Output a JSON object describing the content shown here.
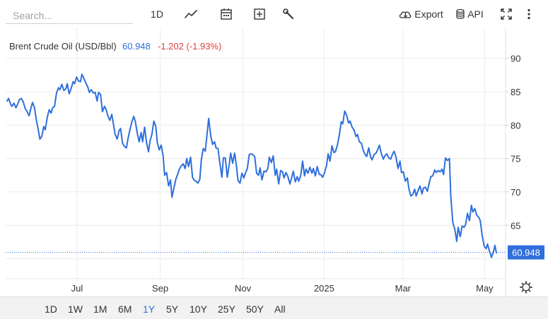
{
  "toolbar": {
    "search_placeholder": "Search...",
    "interval_label": "1D",
    "export_label": "Export",
    "api_label": "API"
  },
  "legend": {
    "name": "Brent Crude Oil (USD/Bbl)",
    "last": "60.948",
    "change": "-1.202 (-1.93%)",
    "name_color": "#333333",
    "last_color": "#2f6fdc",
    "change_color": "#e0403a"
  },
  "price_badge": "60.948",
  "ranges": [
    {
      "label": "1D",
      "active": false
    },
    {
      "label": "1W",
      "active": false
    },
    {
      "label": "1M",
      "active": false
    },
    {
      "label": "6M",
      "active": false
    },
    {
      "label": "1Y",
      "active": true
    },
    {
      "label": "5Y",
      "active": false
    },
    {
      "label": "10Y",
      "active": false
    },
    {
      "label": "25Y",
      "active": false
    },
    {
      "label": "50Y",
      "active": false
    },
    {
      "label": "All",
      "active": false
    }
  ],
  "chart_data": {
    "type": "line",
    "title": "",
    "xlabel": "",
    "ylabel": "",
    "ylim": [
      57,
      94.5
    ],
    "xlim": [
      0,
      100
    ],
    "y_ticks": [
      90,
      85,
      80,
      75,
      70,
      65
    ],
    "x_ticks": [
      {
        "label": "Jul",
        "x": 14.3
      },
      {
        "label": "Sep",
        "x": 31.3
      },
      {
        "label": "Nov",
        "x": 48.2
      },
      {
        "label": "2025",
        "x": 64.8
      },
      {
        "label": "Mar",
        "x": 80.9
      },
      {
        "label": "May",
        "x": 97.6
      }
    ],
    "line_color": "#2f6fdc",
    "last_value": 60.948,
    "grid": true,
    "series": [
      {
        "values": [
          [
            0.0,
            83.6
          ],
          [
            0.3,
            84.0
          ],
          [
            0.7,
            83.2
          ],
          [
            1.0,
            82.8
          ],
          [
            1.4,
            83.3
          ],
          [
            1.8,
            82.6
          ],
          [
            2.2,
            83.2
          ],
          [
            2.5,
            83.8
          ],
          [
            2.9,
            84.0
          ],
          [
            3.3,
            83.5
          ],
          [
            3.7,
            82.5
          ],
          [
            4.1,
            82.0
          ],
          [
            4.5,
            81.4
          ],
          [
            4.8,
            82.3
          ],
          [
            5.2,
            83.4
          ],
          [
            5.6,
            82.6
          ],
          [
            6.0,
            80.7
          ],
          [
            6.3,
            79.6
          ],
          [
            6.7,
            77.9
          ],
          [
            7.1,
            78.3
          ],
          [
            7.5,
            79.8
          ],
          [
            7.8,
            79.3
          ],
          [
            8.2,
            81.1
          ],
          [
            8.6,
            82.3
          ],
          [
            9.0,
            81.8
          ],
          [
            9.3,
            82.6
          ],
          [
            9.7,
            82.8
          ],
          [
            10.1,
            84.8
          ],
          [
            10.5,
            85.6
          ],
          [
            10.8,
            85.3
          ],
          [
            11.2,
            86.1
          ],
          [
            11.6,
            85.2
          ],
          [
            12.0,
            85.4
          ],
          [
            12.3,
            86.2
          ],
          [
            12.7,
            84.7
          ],
          [
            13.1,
            85.5
          ],
          [
            13.5,
            86.5
          ],
          [
            13.8,
            86.2
          ],
          [
            14.2,
            87.2
          ],
          [
            14.6,
            86.6
          ],
          [
            15.0,
            86.5
          ],
          [
            15.3,
            87.6
          ],
          [
            15.7,
            87.0
          ],
          [
            16.1,
            86.3
          ],
          [
            16.5,
            85.7
          ],
          [
            16.8,
            84.9
          ],
          [
            17.2,
            85.3
          ],
          [
            17.6,
            84.8
          ],
          [
            18.0,
            84.9
          ],
          [
            18.4,
            83.6
          ],
          [
            18.7,
            84.9
          ],
          [
            19.1,
            84.6
          ],
          [
            19.5,
            82.0
          ],
          [
            19.9,
            82.8
          ],
          [
            20.2,
            82.4
          ],
          [
            20.6,
            81.4
          ],
          [
            21.0,
            80.7
          ],
          [
            21.4,
            81.6
          ],
          [
            21.7,
            80.3
          ],
          [
            22.1,
            78.6
          ],
          [
            22.5,
            77.9
          ],
          [
            22.9,
            79.2
          ],
          [
            23.2,
            79.5
          ],
          [
            23.6,
            77.3
          ],
          [
            24.0,
            76.8
          ],
          [
            24.4,
            76.6
          ],
          [
            24.7,
            77.9
          ],
          [
            25.1,
            79.3
          ],
          [
            25.5,
            80.5
          ],
          [
            25.9,
            81.3
          ],
          [
            26.2,
            80.6
          ],
          [
            26.6,
            78.8
          ],
          [
            27.0,
            77.5
          ],
          [
            27.4,
            78.9
          ],
          [
            27.7,
            77.5
          ],
          [
            28.1,
            79.7
          ],
          [
            28.5,
            77.4
          ],
          [
            28.9,
            76.0
          ],
          [
            29.2,
            77.6
          ],
          [
            29.6,
            78.6
          ],
          [
            30.0,
            80.6
          ],
          [
            30.4,
            79.8
          ],
          [
            30.7,
            77.4
          ],
          [
            31.1,
            76.3
          ],
          [
            31.5,
            77.0
          ],
          [
            31.9,
            75.4
          ],
          [
            32.2,
            72.5
          ],
          [
            32.6,
            72.9
          ],
          [
            33.0,
            70.9
          ],
          [
            33.4,
            71.8
          ],
          [
            33.7,
            69.2
          ],
          [
            34.1,
            70.6
          ],
          [
            34.5,
            71.9
          ],
          [
            34.9,
            72.7
          ],
          [
            35.2,
            73.4
          ],
          [
            35.6,
            73.9
          ],
          [
            36.0,
            74.2
          ],
          [
            36.4,
            73.5
          ],
          [
            36.7,
            75.0
          ],
          [
            37.1,
            73.8
          ],
          [
            37.5,
            75.2
          ],
          [
            37.9,
            72.2
          ],
          [
            38.2,
            71.8
          ],
          [
            38.6,
            71.6
          ],
          [
            39.0,
            71.3
          ],
          [
            39.4,
            71.9
          ],
          [
            39.7,
            74.8
          ],
          [
            40.1,
            76.5
          ],
          [
            40.5,
            76.1
          ],
          [
            40.9,
            78.8
          ],
          [
            41.2,
            81.0
          ],
          [
            41.6,
            78.5
          ],
          [
            42.0,
            77.1
          ],
          [
            42.4,
            77.5
          ],
          [
            42.7,
            76.6
          ],
          [
            43.1,
            76.5
          ],
          [
            43.5,
            74.3
          ],
          [
            43.9,
            72.2
          ],
          [
            44.2,
            75.1
          ],
          [
            44.6,
            75.1
          ],
          [
            45.0,
            72.2
          ],
          [
            45.4,
            74.1
          ],
          [
            45.7,
            75.8
          ],
          [
            46.1,
            74.3
          ],
          [
            46.5,
            75.8
          ],
          [
            46.9,
            73.8
          ],
          [
            47.2,
            71.7
          ],
          [
            47.6,
            71.3
          ],
          [
            48.0,
            72.8
          ],
          [
            48.4,
            72.1
          ],
          [
            48.7,
            72.8
          ],
          [
            49.1,
            73.5
          ],
          [
            49.5,
            75.6
          ],
          [
            49.9,
            75.7
          ],
          [
            50.2,
            75.6
          ],
          [
            50.6,
            75.3
          ],
          [
            51.0,
            72.8
          ],
          [
            51.4,
            72.5
          ],
          [
            51.7,
            73.6
          ],
          [
            52.1,
            71.8
          ],
          [
            52.5,
            73.1
          ],
          [
            52.9,
            73.0
          ],
          [
            53.3,
            73.5
          ],
          [
            53.6,
            75.2
          ],
          [
            54.0,
            74.4
          ],
          [
            54.4,
            75.4
          ],
          [
            54.8,
            72.5
          ],
          [
            55.1,
            73.4
          ],
          [
            55.5,
            71.2
          ],
          [
            55.9,
            73.2
          ],
          [
            56.3,
            73.0
          ],
          [
            56.6,
            72.1
          ],
          [
            57.0,
            72.9
          ],
          [
            57.4,
            72.3
          ],
          [
            57.8,
            71.2
          ],
          [
            58.1,
            72.0
          ],
          [
            58.5,
            73.1
          ],
          [
            58.9,
            71.5
          ],
          [
            59.3,
            72.3
          ],
          [
            59.6,
            71.6
          ],
          [
            60.0,
            72.4
          ],
          [
            60.4,
            74.6
          ],
          [
            60.8,
            72.4
          ],
          [
            61.1,
            73.4
          ],
          [
            61.5,
            72.8
          ],
          [
            61.9,
            73.7
          ],
          [
            62.3,
            72.8
          ],
          [
            62.6,
            73.5
          ],
          [
            63.0,
            72.4
          ],
          [
            63.4,
            73.8
          ],
          [
            63.8,
            72.6
          ],
          [
            64.1,
            72.6
          ],
          [
            64.5,
            72.2
          ],
          [
            64.9,
            72.9
          ],
          [
            65.3,
            74.0
          ],
          [
            65.6,
            75.7
          ],
          [
            66.0,
            74.6
          ],
          [
            66.4,
            76.9
          ],
          [
            66.8,
            75.9
          ],
          [
            67.1,
            76.0
          ],
          [
            67.5,
            77.0
          ],
          [
            67.9,
            78.5
          ],
          [
            68.3,
            80.5
          ],
          [
            68.6,
            80.2
          ],
          [
            69.0,
            82.1
          ],
          [
            69.4,
            81.5
          ],
          [
            69.8,
            80.3
          ],
          [
            70.1,
            80.6
          ],
          [
            70.5,
            79.7
          ],
          [
            70.9,
            79.3
          ],
          [
            71.3,
            78.3
          ],
          [
            71.6,
            78.6
          ],
          [
            72.0,
            77.5
          ],
          [
            72.4,
            77.3
          ],
          [
            72.8,
            76.2
          ],
          [
            73.1,
            75.7
          ],
          [
            73.5,
            75.3
          ],
          [
            73.9,
            76.6
          ],
          [
            74.3,
            75.2
          ],
          [
            74.6,
            74.8
          ],
          [
            75.0,
            75.6
          ],
          [
            75.4,
            75.8
          ],
          [
            75.8,
            76.4
          ],
          [
            76.1,
            77.0
          ],
          [
            76.5,
            75.7
          ],
          [
            76.9,
            74.9
          ],
          [
            77.3,
            75.5
          ],
          [
            77.6,
            75.7
          ],
          [
            78.0,
            75.1
          ],
          [
            78.4,
            74.9
          ],
          [
            78.8,
            75.7
          ],
          [
            79.1,
            76.1
          ],
          [
            79.5,
            75.2
          ],
          [
            79.9,
            73.5
          ],
          [
            80.3,
            74.6
          ],
          [
            80.6,
            72.9
          ],
          [
            81.0,
            73.0
          ],
          [
            81.4,
            71.6
          ],
          [
            81.8,
            72.1
          ],
          [
            82.1,
            70.6
          ],
          [
            82.5,
            69.4
          ],
          [
            82.9,
            69.6
          ],
          [
            83.3,
            70.4
          ],
          [
            83.6,
            69.4
          ],
          [
            84.0,
            70.2
          ],
          [
            84.4,
            70.9
          ],
          [
            84.8,
            69.7
          ],
          [
            85.1,
            70.6
          ],
          [
            85.5,
            70.7
          ],
          [
            85.9,
            70.1
          ],
          [
            86.2,
            71.1
          ],
          [
            86.6,
            72.3
          ],
          [
            87.0,
            72.4
          ],
          [
            87.4,
            73.3
          ],
          [
            87.7,
            72.9
          ],
          [
            88.1,
            73.2
          ],
          [
            88.5,
            73.0
          ],
          [
            88.9,
            73.4
          ],
          [
            89.2,
            72.6
          ],
          [
            89.6,
            75.1
          ],
          [
            90.0,
            74.7
          ],
          [
            90.4,
            75.0
          ],
          [
            90.7,
            69.2
          ],
          [
            91.1,
            65.4
          ],
          [
            91.5,
            64.4
          ],
          [
            91.9,
            62.6
          ],
          [
            92.2,
            64.7
          ],
          [
            92.6,
            63.3
          ],
          [
            93.0,
            64.9
          ],
          [
            93.4,
            64.7
          ],
          [
            93.7,
            65.1
          ],
          [
            94.1,
            66.8
          ],
          [
            94.5,
            65.7
          ],
          [
            94.9,
            68.0
          ],
          [
            95.2,
            67.0
          ],
          [
            95.6,
            67.5
          ],
          [
            96.0,
            66.5
          ],
          [
            96.4,
            66.2
          ],
          [
            96.7,
            65.7
          ],
          [
            97.1,
            63.5
          ],
          [
            97.5,
            61.9
          ],
          [
            97.9,
            61.5
          ],
          [
            98.2,
            62.2
          ],
          [
            98.6,
            61.1
          ],
          [
            99.0,
            60.2
          ],
          [
            99.4,
            61.0
          ],
          [
            99.7,
            62.0
          ],
          [
            100.0,
            60.9
          ]
        ]
      }
    ]
  }
}
